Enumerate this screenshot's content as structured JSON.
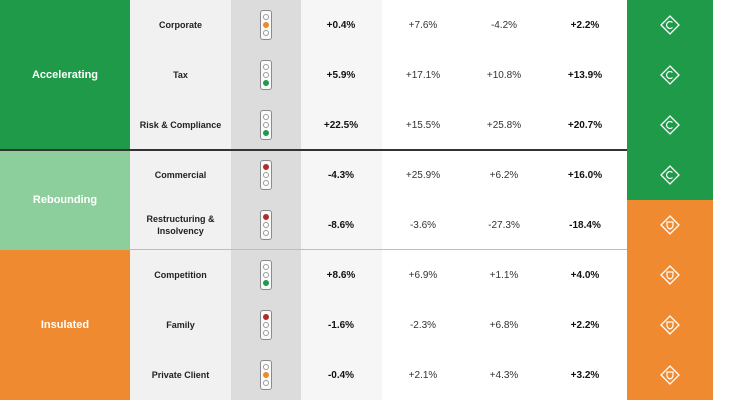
{
  "groups": [
    {
      "label": "Accelerating",
      "color": "#1e9a48"
    },
    {
      "label": "Rebounding",
      "color": "#8ccf9c"
    },
    {
      "label": "Insulated",
      "color": "#f08a30"
    }
  ],
  "rows": [
    {
      "practice": "Corporate",
      "signal": "amber",
      "v1": "+0.4%",
      "v2": "+7.6%",
      "v3": "-4.2%",
      "v4": "+2.2%",
      "status": "green",
      "icon": "diamond-up-icon"
    },
    {
      "practice": "Tax",
      "signal": "green",
      "v1": "+5.9%",
      "v2": "+17.1%",
      "v3": "+10.8%",
      "v4": "+13.9%",
      "status": "green",
      "icon": "diamond-up-icon"
    },
    {
      "practice": "Risk & Compliance",
      "signal": "green",
      "v1": "+22.5%",
      "v2": "+15.5%",
      "v3": "+25.8%",
      "v4": "+20.7%",
      "status": "green",
      "icon": "diamond-up-icon"
    },
    {
      "practice": "Commercial",
      "signal": "red",
      "v1": "-4.3%",
      "v2": "+25.9%",
      "v3": "+6.2%",
      "v4": "+16.0%",
      "status": "green",
      "icon": "diamond-up-icon"
    },
    {
      "practice": "Restructuring & Insolvency",
      "signal": "red",
      "v1": "-8.6%",
      "v2": "-3.6%",
      "v3": "-27.3%",
      "v4": "-18.4%",
      "status": "orange",
      "icon": "diamond-shield-icon"
    },
    {
      "practice": "Competition",
      "signal": "green",
      "v1": "+8.6%",
      "v2": "+6.9%",
      "v3": "+1.1%",
      "v4": "+4.0%",
      "status": "orange",
      "icon": "diamond-shield-icon"
    },
    {
      "practice": "Family",
      "signal": "red",
      "v1": "-1.6%",
      "v2": "-2.3%",
      "v3": "+6.8%",
      "v4": "+2.2%",
      "status": "orange",
      "icon": "diamond-shield-icon"
    },
    {
      "practice": "Private Client",
      "signal": "amber",
      "v1": "-0.4%",
      "v2": "+2.1%",
      "v3": "+4.3%",
      "v4": "+3.2%",
      "status": "orange",
      "icon": "diamond-shield-icon"
    }
  ]
}
